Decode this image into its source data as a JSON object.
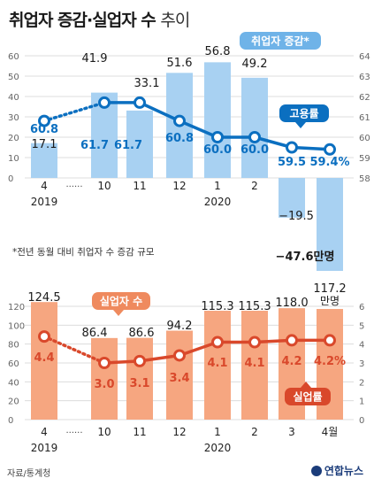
{
  "header": {
    "title_main": "취업자 증감·실업자 수",
    "title_light": "추이"
  },
  "footer": {
    "source": "자료/통계청",
    "logo_text": "연합뉴스"
  },
  "colors": {
    "top_bar": "#a8d1f2",
    "top_line": "#0b6fc0",
    "top_badge": "#6fb3e8",
    "bottom_bar": "#f6a680",
    "bottom_line": "#d9482b",
    "bottom_badge": "#ef8a5e"
  },
  "chart_data": [
    {
      "type": "bar",
      "categories": [
        "4",
        "10",
        "11",
        "12",
        "1",
        "2",
        "3",
        "4월"
      ],
      "gap_label": "······",
      "year_labels": [
        {
          "index": 0,
          "label": "2019"
        },
        {
          "index": 4,
          "label": "2020"
        }
      ],
      "left_axis": {
        "ticks": [
          60,
          50,
          40,
          30,
          20,
          10,
          0
        ],
        "range": [
          -50,
          60
        ]
      },
      "right_axis": {
        "ticks": [
          64,
          63,
          62,
          61,
          60,
          59,
          58
        ],
        "range": [
          53,
          64
        ]
      },
      "series": [
        {
          "name": "취업자 증감*",
          "kind": "bar",
          "axis": "left",
          "values": [
            17.1,
            41.9,
            33.1,
            51.6,
            56.8,
            49.2,
            -19.5,
            -47.6
          ],
          "labels": [
            "17.1",
            "41.9",
            "33.1",
            "51.6",
            "56.8",
            "49.2",
            "−19.5",
            "−47.6만명"
          ]
        },
        {
          "name": "고용률",
          "kind": "line",
          "axis": "right",
          "values": [
            60.8,
            61.7,
            61.7,
            60.8,
            60.0,
            60.0,
            59.5,
            59.4
          ],
          "labels": [
            "60.8",
            "61.7",
            "61.7",
            "60.8",
            "60.0",
            "60.0",
            "59.5",
            "59.4%"
          ]
        }
      ],
      "note": "*전년 동월 대비 취업자 수 증감 규모"
    },
    {
      "type": "bar",
      "categories": [
        "4",
        "10",
        "11",
        "12",
        "1",
        "2",
        "3",
        "4월"
      ],
      "gap_label": "······",
      "year_labels": [
        {
          "index": 0,
          "label": "2019"
        },
        {
          "index": 4,
          "label": "2020"
        }
      ],
      "left_axis": {
        "ticks": [
          120,
          100,
          80,
          60,
          40,
          20,
          0
        ],
        "range": [
          0,
          120
        ]
      },
      "right_axis": {
        "ticks": [
          6,
          5,
          4,
          3,
          2,
          1,
          0
        ],
        "range": [
          0,
          6
        ]
      },
      "series": [
        {
          "name": "실업자 수",
          "kind": "bar",
          "axis": "left",
          "values": [
            124.5,
            86.4,
            86.6,
            94.2,
            115.3,
            115.3,
            118.0,
            117.2
          ],
          "labels": [
            "124.5",
            "86.4",
            "86.6",
            "94.2",
            "115.3",
            "115.3",
            "118.0",
            "117.2"
          ],
          "unit_label": "만명"
        },
        {
          "name": "실업률",
          "kind": "line",
          "axis": "right",
          "values": [
            4.4,
            3.0,
            3.1,
            3.4,
            4.1,
            4.1,
            4.2,
            4.2
          ],
          "labels": [
            "4.4",
            "3.0",
            "3.1",
            "3.4",
            "4.1",
            "4.1",
            "4.2",
            "4.2%"
          ]
        }
      ]
    }
  ]
}
